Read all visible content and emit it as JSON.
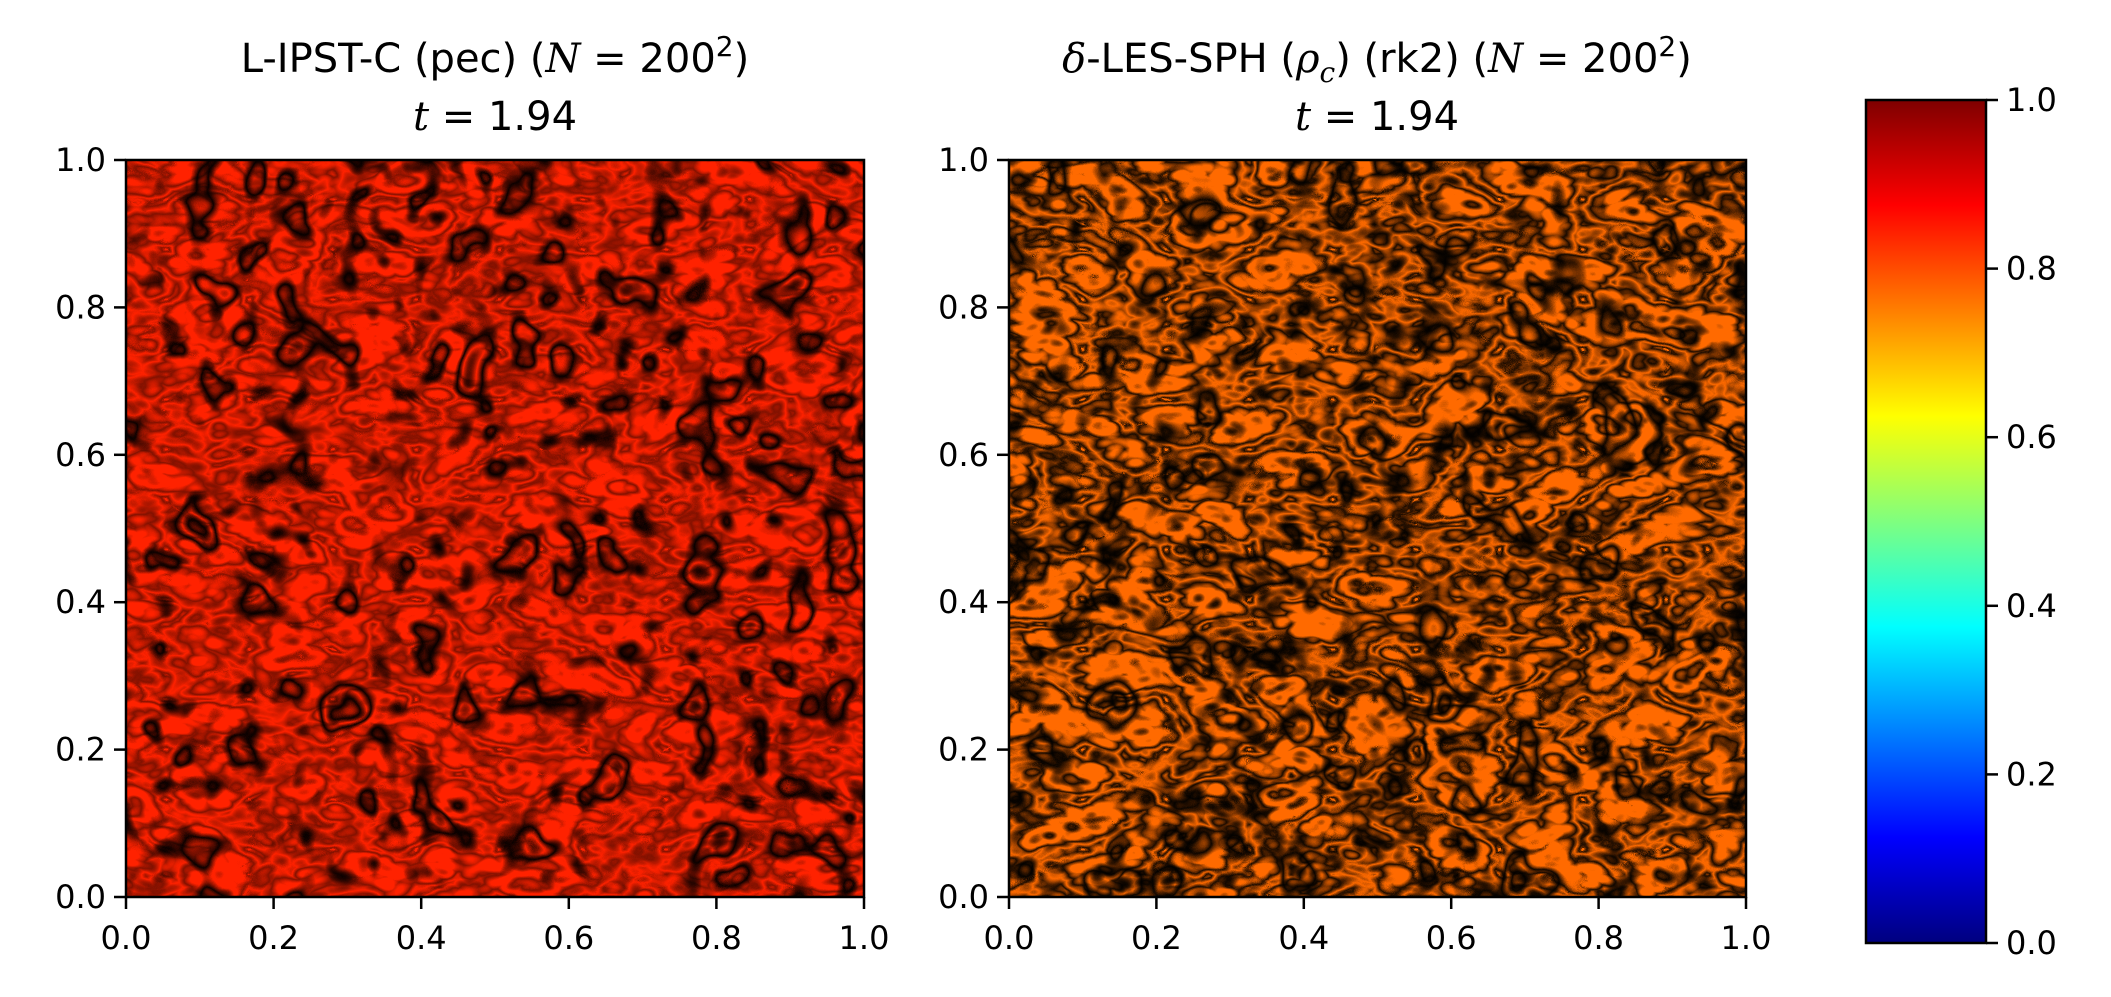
{
  "chart_data": [
    {
      "type": "heatmap",
      "title_line1": "L-IPST-C (pec) (",
      "title_var": "N",
      "title_eq": " = 200",
      "title_sup": "2",
      "title_close": ")",
      "title_line2_var": "t",
      "title_line2_eq": " = 1.94",
      "xlim": [
        0.0,
        1.0
      ],
      "ylim": [
        0.0,
        1.0
      ],
      "xticks": [
        "0.0",
        "0.2",
        "0.4",
        "0.6",
        "0.8",
        "1.0"
      ],
      "yticks": [
        "0.0",
        "0.2",
        "0.4",
        "0.6",
        "0.8",
        "1.0"
      ],
      "colormap": "jet",
      "pattern": "ordered stripes and droplets"
    },
    {
      "type": "heatmap",
      "title_delta": "δ",
      "title_line1": "-LES-SPH (",
      "title_var": "ρ",
      "title_sub": "c",
      "title_mid": ") (rk2) (",
      "title_var2": "N",
      "title_eq": " = 200",
      "title_sup": "2",
      "title_close": ")",
      "title_line2_var": "t",
      "title_line2_eq": " = 1.94",
      "xlim": [
        0.0,
        1.0
      ],
      "ylim": [
        0.0,
        1.0
      ],
      "xticks": [
        "0.0",
        "0.2",
        "0.4",
        "0.6",
        "0.8",
        "1.0"
      ],
      "yticks": [
        "0.0",
        "0.2",
        "0.4",
        "0.6",
        "0.8",
        "1.0"
      ],
      "colormap": "jet",
      "pattern": "turbulent filaments"
    }
  ],
  "colorbar": {
    "colormap": "jet",
    "range": [
      0.0,
      1.0
    ],
    "ticks": [
      "0.0",
      "0.2",
      "0.4",
      "0.6",
      "0.8",
      "1.0"
    ],
    "stops": [
      "#00007f",
      "#0000ff",
      "#007fff",
      "#00ffff",
      "#7fff7f",
      "#ffff00",
      "#ff7f00",
      "#ff0000",
      "#7f0000"
    ]
  }
}
